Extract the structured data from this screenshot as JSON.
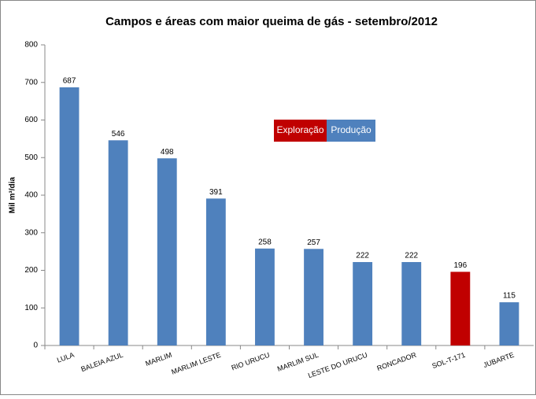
{
  "chart_data": {
    "type": "bar",
    "title": "Campos e áreas com maior queima de gás - setembro/2012",
    "y_label": "Mil m³/dia",
    "categories": [
      "LULA",
      "BALEIA AZUL",
      "MARLIM",
      "MARLIM LESTE",
      "RIO URUCU",
      "MARLIM SUL",
      "LESTE DO URUCU",
      "RONCADOR",
      "SOL-T-171",
      "JUBARTE"
    ],
    "values": [
      687,
      546,
      498,
      391,
      258,
      257,
      222,
      222,
      196,
      115
    ],
    "colors": [
      "#4f81bd",
      "#4f81bd",
      "#4f81bd",
      "#4f81bd",
      "#4f81bd",
      "#4f81bd",
      "#4f81bd",
      "#4f81bd",
      "#c00000",
      "#4f81bd"
    ],
    "legend": [
      {
        "name": "Exploração",
        "color": "#c00000"
      },
      {
        "name": "Produção",
        "color": "#4f81bd"
      }
    ],
    "ylim": [
      0,
      800
    ],
    "yticks": [
      0,
      100,
      200,
      300,
      400,
      500,
      600,
      700,
      800
    ],
    "grid": false
  }
}
